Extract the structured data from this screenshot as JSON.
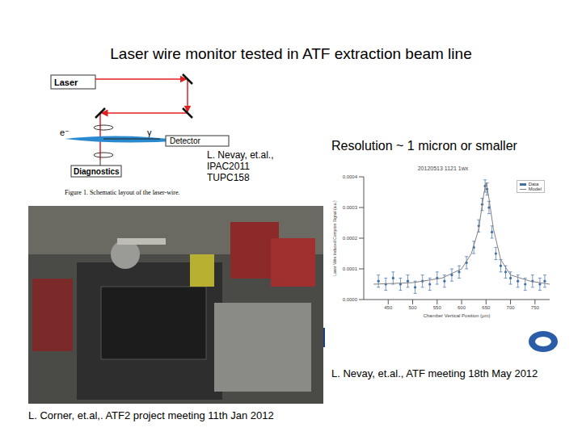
{
  "title": "Laser wire monitor tested in ATF extraction beam line",
  "schematic": {
    "laser": "Laser",
    "electron": "e⁻",
    "gamma": "γ",
    "detector": "Detector",
    "diagnostics": "Diagnostics",
    "caption": "Figure 1. Schematic layout of the laser-wire."
  },
  "citation_top": [
    "L. Nevay, et.al.,",
    "IPAC2011",
    "TUPC158"
  ],
  "resolution": "Resolution ~ 1 micron or smaller",
  "chart_data": {
    "type": "scatter",
    "title": "20120513 1121 1wx",
    "x_label": "Chamber Vertical Position (μm)",
    "y_label": "Laser Wire Induced Compton Signal (a.u.)",
    "xlim": [
      400,
      780
    ],
    "xticks": [
      450,
      500,
      550,
      600,
      650,
      700,
      750
    ],
    "ylim": [
      0,
      0.0004
    ],
    "yticks": [
      {
        "value": 0,
        "label": "0.0000"
      },
      {
        "value": 0.0001,
        "label": "0.0001"
      },
      {
        "value": 0.0002,
        "label": "0.0002"
      },
      {
        "value": 0.0003,
        "label": "0.0003"
      },
      {
        "value": 0.0004,
        "label": "0.0004"
      }
    ],
    "legend": "upper right",
    "series": [
      {
        "name": "Data",
        "type": "scatter",
        "marker": "circle",
        "color": "#3f6fa8",
        "x": [
          430,
          445,
          460,
          475,
          490,
          505,
          520,
          535,
          550,
          565,
          580,
          595,
          610,
          625,
          635,
          642,
          648,
          652,
          656,
          662,
          670,
          680,
          690,
          700,
          715,
          730,
          745,
          760,
          770
        ],
        "values": [
          6e-05,
          5e-05,
          7e-05,
          5e-05,
          6e-05,
          4e-05,
          6e-05,
          5e-05,
          7e-05,
          6e-05,
          8e-05,
          9e-05,
          0.00012,
          0.00017,
          0.00024,
          0.00031,
          0.00037,
          0.00036,
          0.0003,
          0.00022,
          0.00015,
          0.00011,
          9e-05,
          7e-05,
          6e-05,
          5e-05,
          6e-05,
          5e-05,
          6e-05
        ],
        "errors": [
          2e-05,
          2e-05,
          2e-05,
          2e-05,
          2e-05,
          2e-05,
          2e-05,
          2e-05,
          2e-05,
          2e-05,
          2e-05,
          2e-05,
          2e-05,
          2e-05,
          2e-05,
          2e-05,
          2e-05,
          2e-05,
          2e-05,
          2e-05,
          2e-05,
          2e-05,
          2e-05,
          2e-05,
          2e-05,
          2e-05,
          2e-05,
          2e-05,
          2e-05
        ]
      },
      {
        "name": "Model",
        "type": "line",
        "line_style": "solid",
        "color": "#808080",
        "x": [
          420,
          500,
          560,
          600,
          620,
          635,
          645,
          650,
          655,
          665,
          680,
          700,
          740,
          780
        ],
        "values": [
          5e-05,
          5.5e-05,
          7e-05,
          0.0001,
          0.00015,
          0.00023,
          0.00034,
          0.00038,
          0.00034,
          0.00023,
          0.00013,
          8e-05,
          6e-05,
          5e-05
        ]
      }
    ]
  },
  "citation_plot": "L. Nevay, et.al., ATF meeting 18th May 2012",
  "citation_photo": "L. Corner, et.al,. ATF2 project meeting 11th Jan 2012"
}
